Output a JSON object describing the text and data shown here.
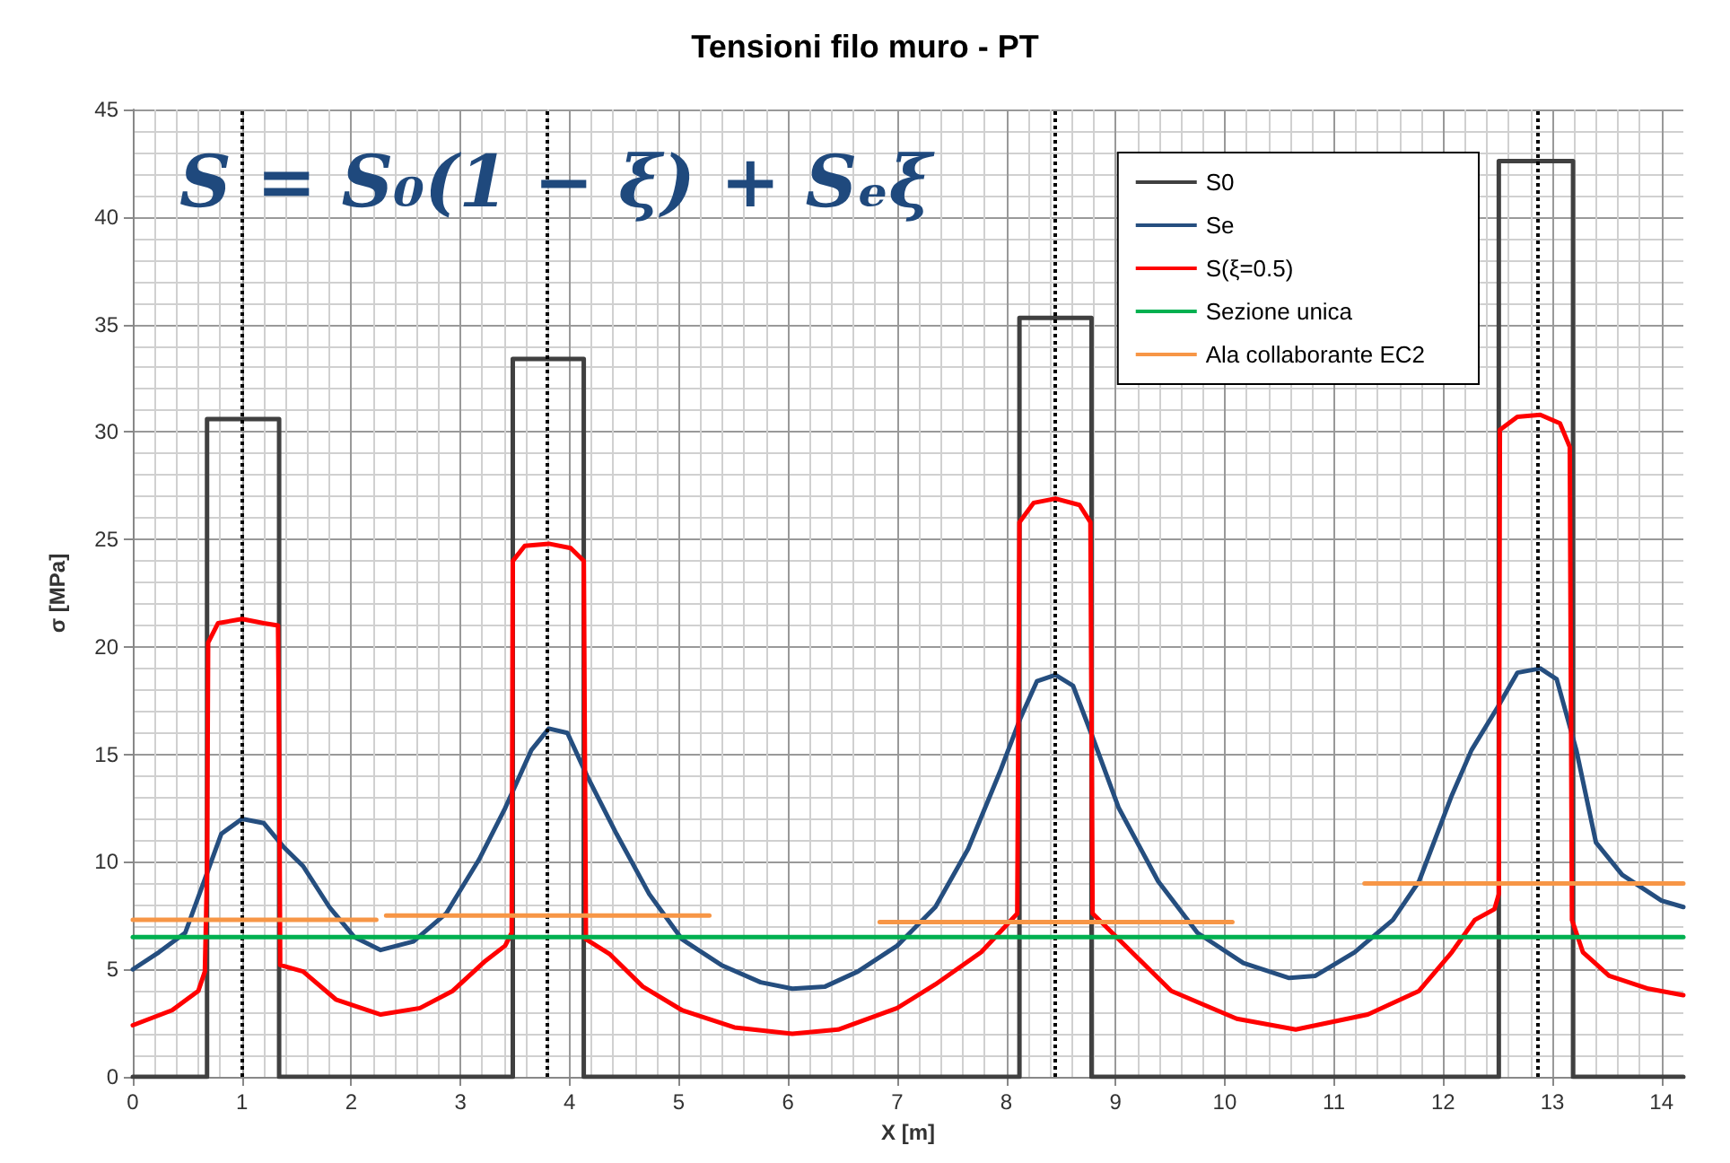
{
  "chart_data": {
    "type": "line",
    "title": "Tensioni filo muro - PT",
    "xlabel": "X [m]",
    "ylabel": "σ [MPa]",
    "annotations": [
      "S = S₀(1 − ξ) + Sₑξ"
    ],
    "xlim": [
      0,
      14.2
    ],
    "xticks": [
      0,
      1,
      2,
      3,
      4,
      5,
      6,
      7,
      8,
      9,
      10,
      11,
      12,
      13,
      14
    ],
    "ylim": [
      0,
      45
    ],
    "yticks": [
      0,
      5,
      10,
      15,
      20,
      25,
      30,
      35,
      40,
      45
    ],
    "grid": true,
    "legend": "top right",
    "marker": "none",
    "line_style": "solid",
    "ref_lines": [
      {
        "axis": "x",
        "value": 1.0,
        "color": "#000000",
        "line_style": "dotted"
      },
      {
        "axis": "x",
        "value": 3.8,
        "color": "#000000",
        "line_style": "dotted"
      },
      {
        "axis": "x",
        "value": 8.45,
        "color": "#000000",
        "line_style": "dotted"
      },
      {
        "axis": "x",
        "value": 12.86,
        "color": "#000000",
        "line_style": "dotted"
      }
    ],
    "series": [
      {
        "name": "S0",
        "color": "#404040",
        "x": [
          0,
          0.68,
          0.68,
          1.34,
          1.34,
          3.48,
          3.48,
          4.13,
          4.13,
          8.12,
          8.12,
          8.78,
          8.78,
          12.51,
          12.51,
          13.19,
          13.19,
          14.2
        ],
        "values": [
          0,
          0,
          30.6,
          30.6,
          0,
          0,
          33.4,
          33.4,
          0,
          0,
          35.3,
          35.3,
          0,
          0,
          42.6,
          42.6,
          0,
          0
        ]
      },
      {
        "name": "Se",
        "color": "#254e7f",
        "x": [
          0,
          0.24,
          0.48,
          0.66,
          0.81,
          1.0,
          1.2,
          1.38,
          1.56,
          1.8,
          2.03,
          2.27,
          2.57,
          2.87,
          3.17,
          3.41,
          3.65,
          3.81,
          3.98,
          4.16,
          4.43,
          4.73,
          5.03,
          5.39,
          5.75,
          6.04,
          6.34,
          6.64,
          7.0,
          7.35,
          7.65,
          7.95,
          8.13,
          8.28,
          8.45,
          8.61,
          8.79,
          9.03,
          9.39,
          9.75,
          10.17,
          10.59,
          10.83,
          11.19,
          11.54,
          11.78,
          12.08,
          12.26,
          12.5,
          12.68,
          12.89,
          13.04,
          13.22,
          13.4,
          13.64,
          14.0,
          14.2
        ],
        "values": [
          5.0,
          5.8,
          6.7,
          9.2,
          11.3,
          12.0,
          11.8,
          10.7,
          9.8,
          7.9,
          6.5,
          5.9,
          6.3,
          7.6,
          10.1,
          12.5,
          15.2,
          16.2,
          16.0,
          14.0,
          11.3,
          8.5,
          6.4,
          5.2,
          4.4,
          4.1,
          4.2,
          4.9,
          6.1,
          7.9,
          10.6,
          14.3,
          16.7,
          18.4,
          18.7,
          18.2,
          15.8,
          12.5,
          9.1,
          6.7,
          5.3,
          4.6,
          4.7,
          5.8,
          7.3,
          9.1,
          13.1,
          15.2,
          17.2,
          18.8,
          19.0,
          18.5,
          15.2,
          10.9,
          9.4,
          8.2,
          7.9
        ]
      },
      {
        "name": "S(ξ=0.5)",
        "color": "#ff0000",
        "x": [
          0,
          0.36,
          0.6,
          0.66,
          0.68,
          0.69,
          0.78,
          1.0,
          1.2,
          1.33,
          1.34,
          1.35,
          1.56,
          1.86,
          2.27,
          2.63,
          2.93,
          3.23,
          3.41,
          3.47,
          3.48,
          3.59,
          3.81,
          4.01,
          4.13,
          4.15,
          4.37,
          4.67,
          5.03,
          5.51,
          6.04,
          6.46,
          7.0,
          7.35,
          7.77,
          8.1,
          8.12,
          8.25,
          8.45,
          8.67,
          8.77,
          8.79,
          9.03,
          9.51,
          10.11,
          10.65,
          11.31,
          11.78,
          12.08,
          12.29,
          12.47,
          12.51,
          12.52,
          12.68,
          12.89,
          13.07,
          13.16,
          13.18,
          13.28,
          13.52,
          13.88,
          14.2
        ],
        "values": [
          2.4,
          3.1,
          4.0,
          4.9,
          9.5,
          20.2,
          21.1,
          21.3,
          21.1,
          21.0,
          15.5,
          5.2,
          4.9,
          3.6,
          2.9,
          3.2,
          4.0,
          5.4,
          6.1,
          6.7,
          24.0,
          24.7,
          24.8,
          24.6,
          24.0,
          6.4,
          5.7,
          4.2,
          3.1,
          2.3,
          2.0,
          2.2,
          3.2,
          4.3,
          5.8,
          7.6,
          25.8,
          26.7,
          26.9,
          26.6,
          25.8,
          7.6,
          6.4,
          4.0,
          2.7,
          2.2,
          2.9,
          4.0,
          5.8,
          7.3,
          7.8,
          8.5,
          30.1,
          30.7,
          30.8,
          30.4,
          29.3,
          7.3,
          5.8,
          4.7,
          4.1,
          3.8
        ]
      },
      {
        "name": "Sezione unica",
        "color": "#00b050",
        "x": [
          0,
          14.2
        ],
        "values": [
          6.5,
          6.5
        ]
      },
      {
        "name": "Ala collaborante EC2",
        "color": "#f79646",
        "x": [
          0,
          2.23,
          2.27,
          2.32,
          5.28,
          6.0,
          6.84,
          10.07,
          10.5,
          11.28,
          14.2
        ],
        "values": [
          7.3,
          7.3,
          null,
          7.5,
          7.5,
          null,
          7.2,
          7.2,
          null,
          9.0,
          9.0
        ]
      }
    ]
  }
}
